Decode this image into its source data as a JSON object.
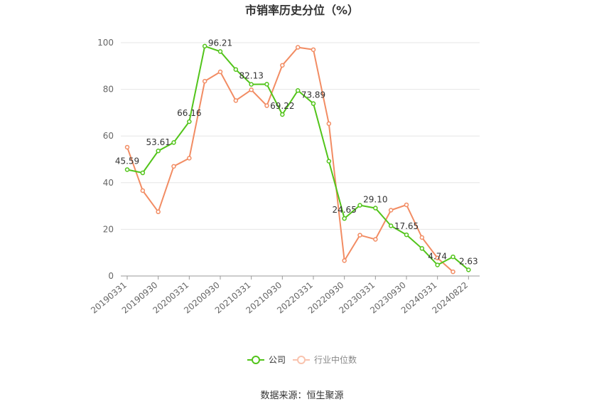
{
  "chart_data": {
    "type": "line",
    "title": "市销率历史分位（%）",
    "source": "数据来源：恒生聚源",
    "ylim": [
      0,
      100
    ],
    "yticks": [
      0,
      20,
      40,
      60,
      80,
      100
    ],
    "x_tick_labels": [
      "20190331",
      "20190930",
      "20200331",
      "20200930",
      "20210331",
      "20210930",
      "20220331",
      "20220930",
      "20230331",
      "20230930",
      "20240331",
      "20240822"
    ],
    "grid": true,
    "legend_position": "bottom-center",
    "series": [
      {
        "name": "公司",
        "color": "#52c41a",
        "values": [
          45.59,
          44.2,
          53.61,
          57.2,
          66.16,
          98.5,
          96.21,
          88.5,
          82.13,
          82.2,
          69.22,
          79.5,
          73.89,
          49.2,
          24.65,
          30.3,
          29.1,
          21.5,
          17.65,
          11.8,
          4.74,
          8.2,
          2.63
        ],
        "labels": {
          "0": "45.59",
          "2": "53.61",
          "4": "66.16",
          "6": "96.21",
          "8": "82.13",
          "10": "69.22",
          "12": "73.89",
          "14": "24.65",
          "16": "29.10",
          "18": "17.65",
          "20": "4.74",
          "22": "2.63"
        }
      },
      {
        "name": "行业中位数",
        "color": "#f28c63",
        "values": [
          55.2,
          36.6,
          27.5,
          47.0,
          50.5,
          83.5,
          87.5,
          75.2,
          79.8,
          73.0,
          90.3,
          98.0,
          97.0,
          65.3,
          6.6,
          17.5,
          15.7,
          28.2,
          30.5,
          16.5,
          7.7,
          1.8,
          null
        ]
      }
    ]
  }
}
